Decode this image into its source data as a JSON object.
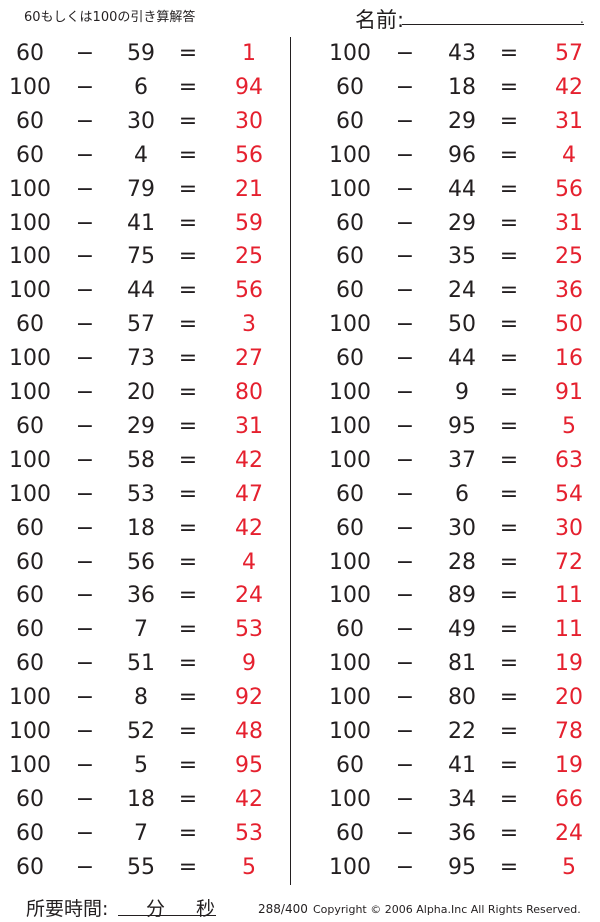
{
  "header": {
    "title": "60もしくは100の引き算解答",
    "name_label": "名前:",
    "name_end": "."
  },
  "operator": "−",
  "equals": "=",
  "left": [
    [
      "60",
      "59",
      "1"
    ],
    [
      "100",
      "6",
      "94"
    ],
    [
      "60",
      "30",
      "30"
    ],
    [
      "60",
      "4",
      "56"
    ],
    [
      "100",
      "79",
      "21"
    ],
    [
      "100",
      "41",
      "59"
    ],
    [
      "100",
      "75",
      "25"
    ],
    [
      "100",
      "44",
      "56"
    ],
    [
      "60",
      "57",
      "3"
    ],
    [
      "100",
      "73",
      "27"
    ],
    [
      "100",
      "20",
      "80"
    ],
    [
      "60",
      "29",
      "31"
    ],
    [
      "100",
      "58",
      "42"
    ],
    [
      "100",
      "53",
      "47"
    ],
    [
      "60",
      "18",
      "42"
    ],
    [
      "60",
      "56",
      "4"
    ],
    [
      "60",
      "36",
      "24"
    ],
    [
      "60",
      "7",
      "53"
    ],
    [
      "60",
      "51",
      "9"
    ],
    [
      "100",
      "8",
      "92"
    ],
    [
      "100",
      "52",
      "48"
    ],
    [
      "100",
      "5",
      "95"
    ],
    [
      "60",
      "18",
      "42"
    ],
    [
      "60",
      "7",
      "53"
    ],
    [
      "60",
      "55",
      "5"
    ]
  ],
  "right": [
    [
      "100",
      "43",
      "57"
    ],
    [
      "60",
      "18",
      "42"
    ],
    [
      "60",
      "29",
      "31"
    ],
    [
      "100",
      "96",
      "4"
    ],
    [
      "100",
      "44",
      "56"
    ],
    [
      "60",
      "29",
      "31"
    ],
    [
      "60",
      "35",
      "25"
    ],
    [
      "60",
      "24",
      "36"
    ],
    [
      "100",
      "50",
      "50"
    ],
    [
      "60",
      "44",
      "16"
    ],
    [
      "100",
      "9",
      "91"
    ],
    [
      "100",
      "95",
      "5"
    ],
    [
      "100",
      "37",
      "63"
    ],
    [
      "60",
      "6",
      "54"
    ],
    [
      "60",
      "30",
      "30"
    ],
    [
      "100",
      "28",
      "72"
    ],
    [
      "100",
      "89",
      "11"
    ],
    [
      "60",
      "49",
      "11"
    ],
    [
      "100",
      "81",
      "19"
    ],
    [
      "100",
      "80",
      "20"
    ],
    [
      "100",
      "22",
      "78"
    ],
    [
      "60",
      "41",
      "19"
    ],
    [
      "100",
      "34",
      "66"
    ],
    [
      "60",
      "36",
      "24"
    ],
    [
      "100",
      "95",
      "5"
    ]
  ],
  "footer": {
    "time_label": "所要時間:",
    "minutes": "分",
    "seconds": "秒",
    "page": "288/400",
    "copyright": "Copyright © 2006 Alpha.Inc All Rights Reserved."
  },
  "colors": {
    "answer": "#e5202e",
    "text": "#231f20"
  }
}
